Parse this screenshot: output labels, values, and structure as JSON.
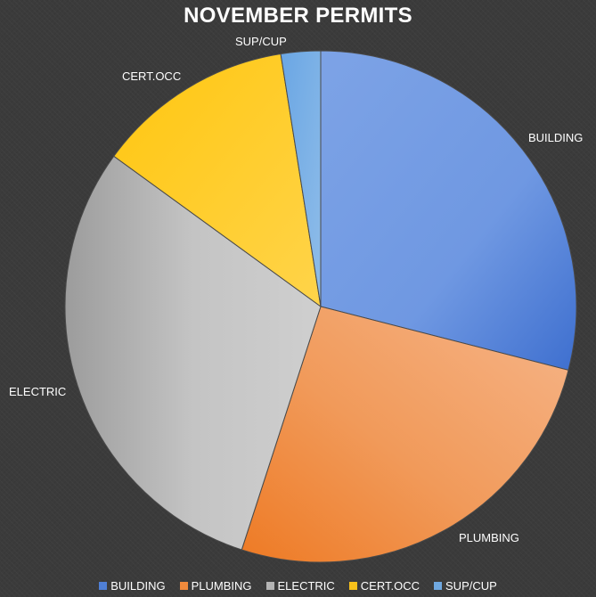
{
  "chart_data": {
    "type": "pie",
    "title": "NOVEMBER PERMITS",
    "categories": [
      "BUILDING",
      "PLUMBING",
      "ELECTRIC",
      "CERT.OCC",
      "SUP/CUP"
    ],
    "values": [
      29,
      26,
      30,
      12.5,
      2.5
    ],
    "legend_position": "bottom",
    "colors": [
      "#4f7fd6",
      "#f08a3c",
      "#b4b4b4",
      "#f8c11a",
      "#6fa8e0"
    ]
  }
}
